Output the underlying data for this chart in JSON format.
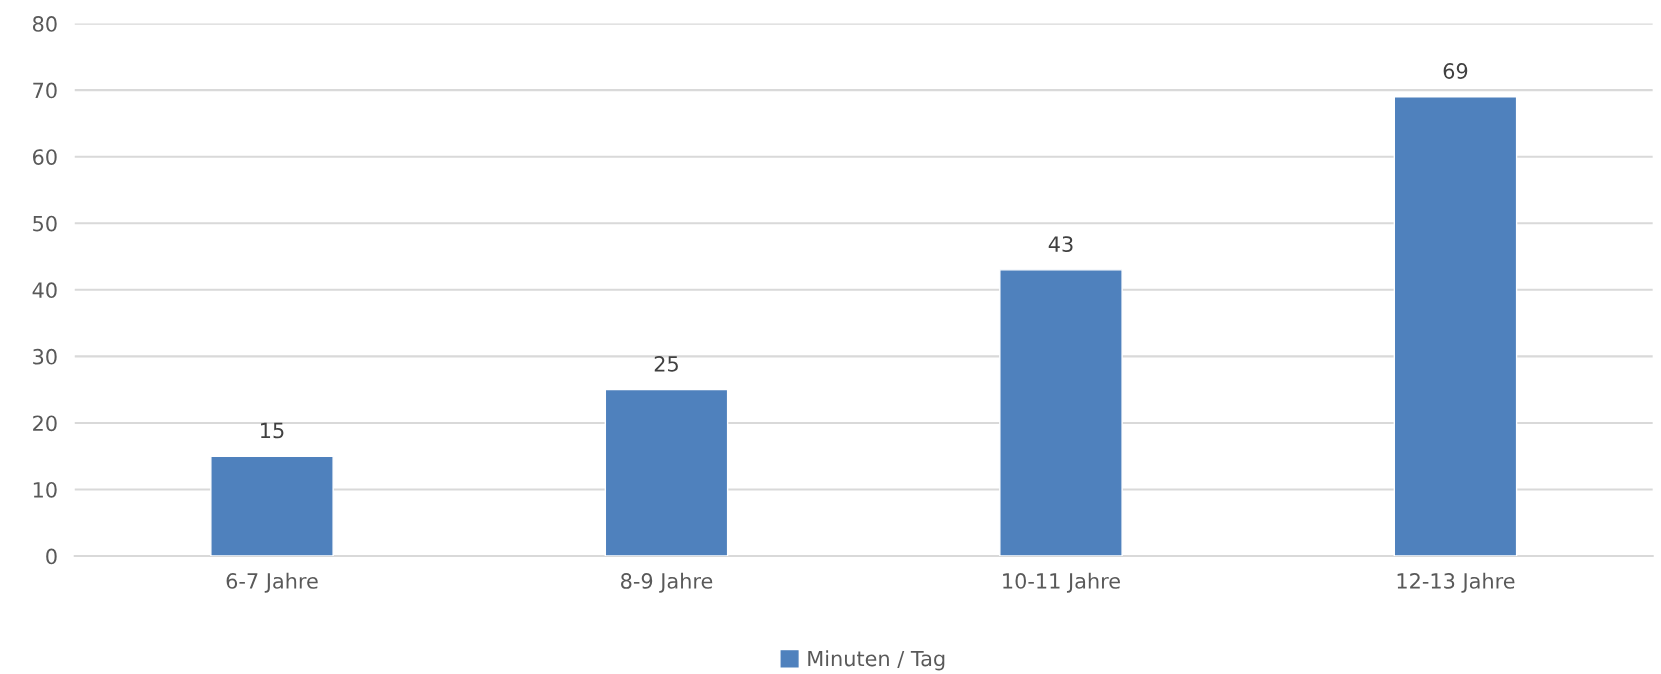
{
  "chart_data": {
    "type": "bar",
    "categories": [
      "6-7 Jahre",
      "8-9 Jahre",
      "10-11 Jahre",
      "12-13 Jahre"
    ],
    "series": [
      {
        "name": "Minuten / Tag",
        "color": "#4f81bd",
        "values": [
          15,
          25,
          43,
          69
        ]
      }
    ],
    "ylim": [
      0,
      80
    ],
    "yticks": [
      0,
      10,
      20,
      30,
      40,
      50,
      60,
      70,
      80
    ],
    "grid": "y",
    "legend": "bottom",
    "data_labels": true
  }
}
